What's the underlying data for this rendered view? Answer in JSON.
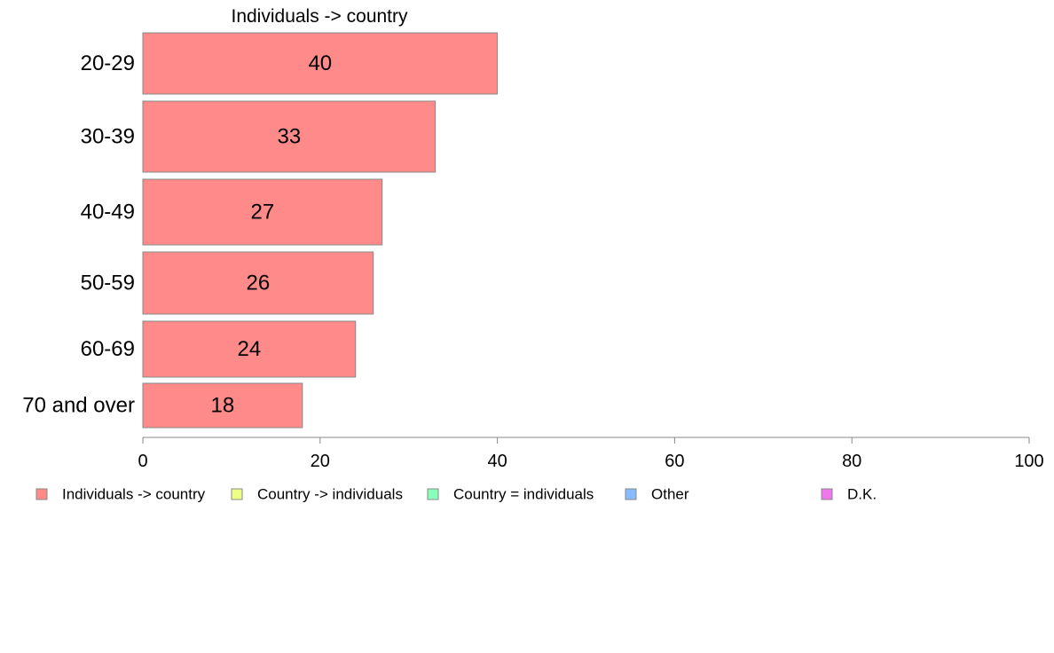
{
  "chart_data": {
    "type": "bar",
    "orientation": "horizontal",
    "title": "Individuals -> country",
    "categories": [
      "20-29",
      "30-39",
      "40-49",
      "50-59",
      "60-69",
      "70 and over"
    ],
    "series": [
      {
        "name": "Individuals -> country",
        "values": [
          40,
          33,
          27,
          26,
          24,
          18
        ],
        "color": "#ff8a8a"
      }
    ],
    "xlim": [
      0,
      100
    ],
    "xticks": [
      "0",
      "20",
      "40",
      "60",
      "80",
      "100"
    ],
    "grid": false,
    "legend": {
      "placement": "bottom",
      "entries": [
        {
          "label": "Individuals -> country",
          "color": "#ff8a8a"
        },
        {
          "label": "Country -> individuals",
          "color": "#eeff88"
        },
        {
          "label": "Country = individuals",
          "color": "#88ffbb"
        },
        {
          "label": "Other",
          "color": "#88bbff"
        },
        {
          "label": "D.K.",
          "color": "#ee77ee"
        }
      ]
    },
    "bar_edge_color": "#888888",
    "axis_color": "#888888"
  }
}
